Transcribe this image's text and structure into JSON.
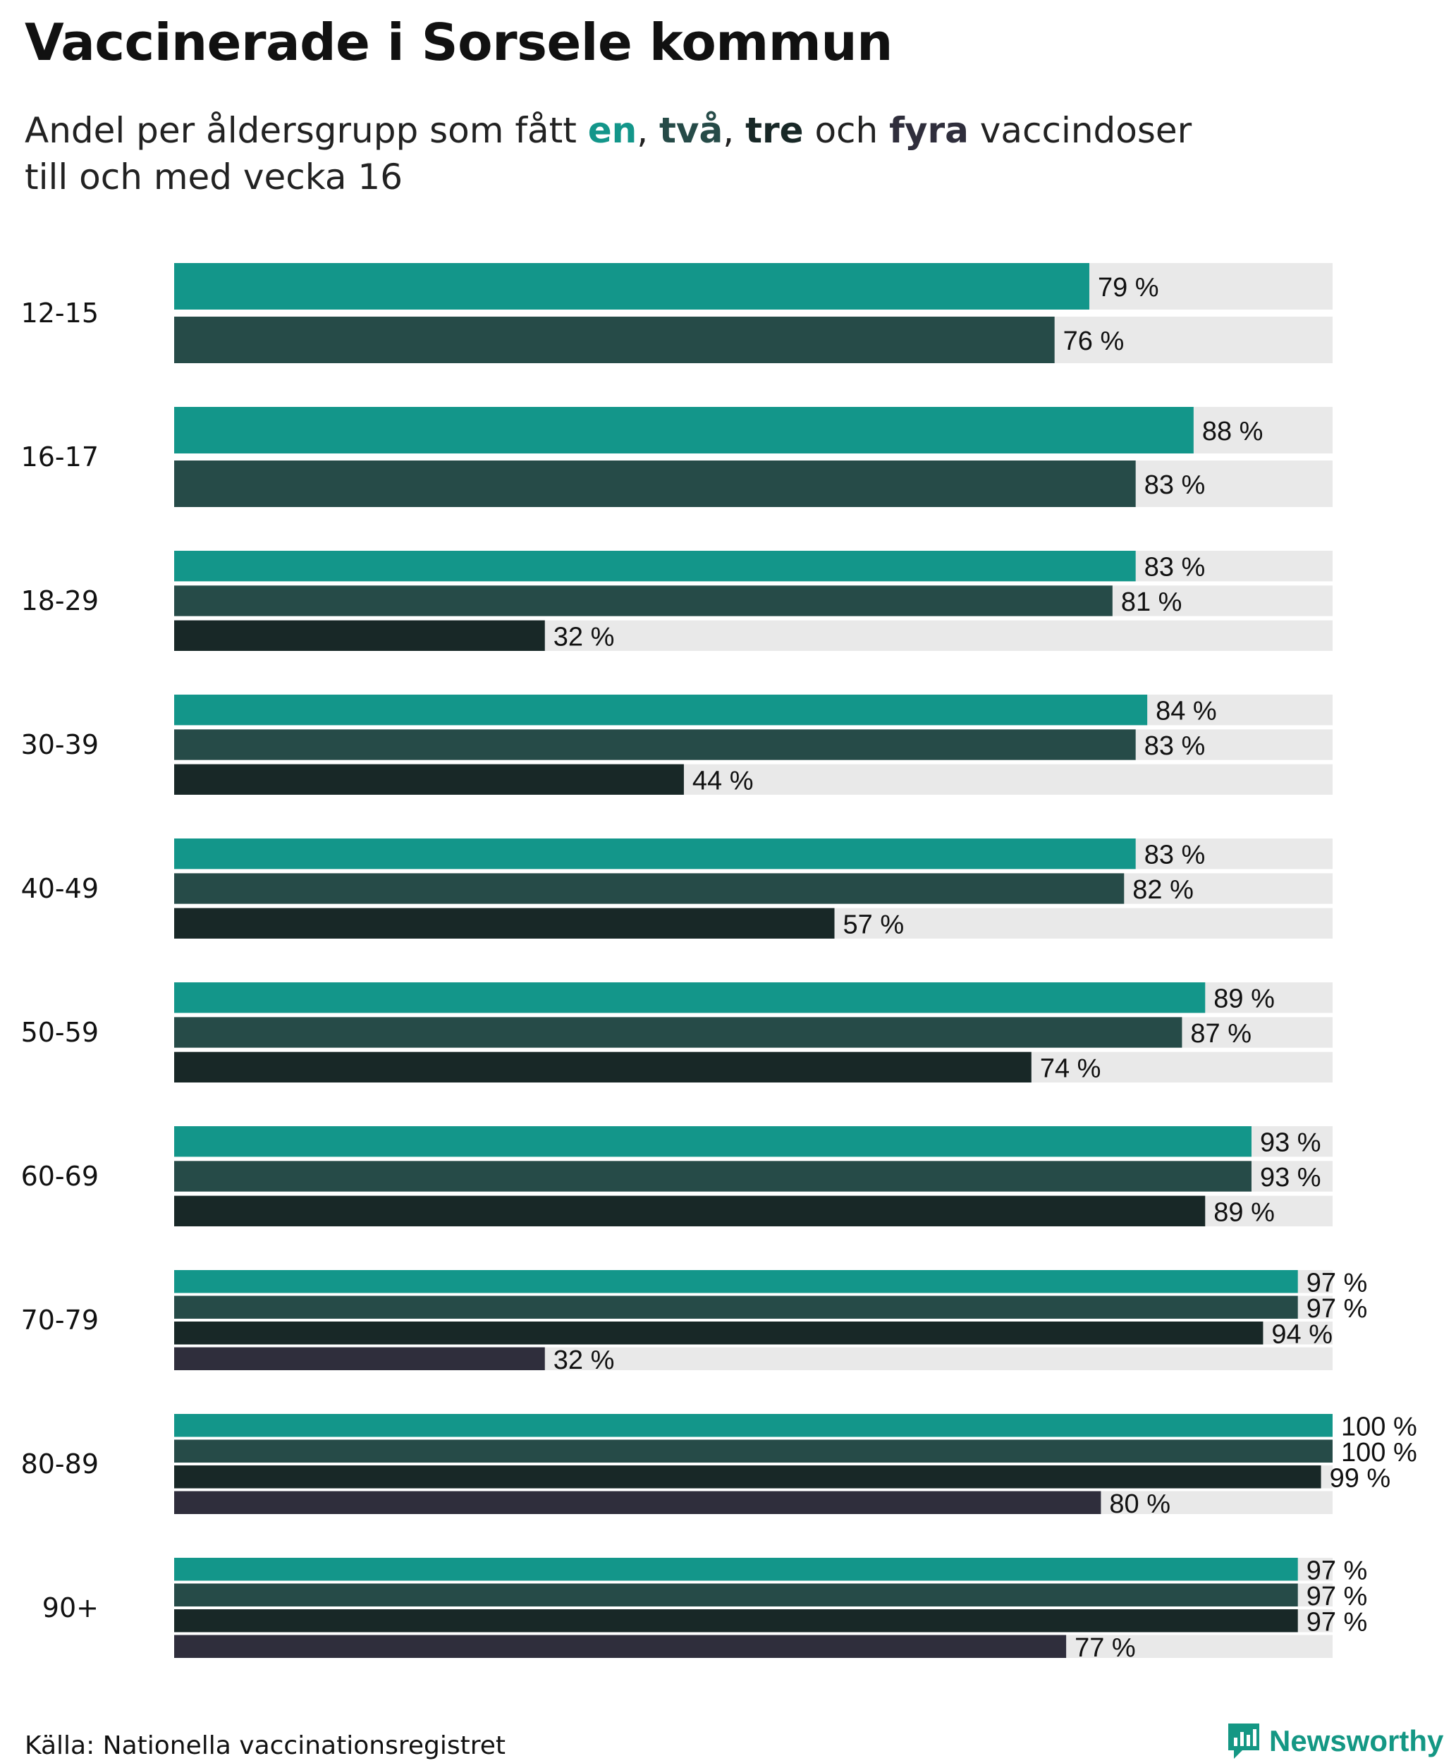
{
  "title": "Vaccinerade i Sorsele kommun",
  "subtitle": {
    "prefix": "Andel per åldersgrupp som fått ",
    "one": "en",
    "sep1": ", ",
    "two": "två",
    "sep2": ", ",
    "three": "tre",
    "och": " och ",
    "four": "fyra",
    "suffix_line1": " vaccindoser",
    "line2": "till och med vecka 16"
  },
  "colors": {
    "dose1": "#13968a",
    "dose2": "#264b48",
    "dose3": "#182827",
    "dose4": "#2f2e3c",
    "track": "#e9e9e9"
  },
  "source": "Källa: Nationella vaccinationsregistret",
  "logo": {
    "text": "Newsworthy",
    "icon": "newsworthy-logo-icon"
  },
  "chart_data": {
    "type": "bar",
    "orientation": "horizontal",
    "title": "Vaccinerade i Sorsele kommun",
    "xlim": [
      0,
      100
    ],
    "unit": "%",
    "categories": [
      "12-15",
      "16-17",
      "18-29",
      "30-39",
      "40-49",
      "50-59",
      "60-69",
      "70-79",
      "80-89",
      "90+"
    ],
    "series": [
      {
        "name": "en",
        "values": [
          79,
          88,
          83,
          84,
          83,
          89,
          93,
          97,
          100,
          97
        ]
      },
      {
        "name": "två",
        "values": [
          76,
          83,
          81,
          83,
          82,
          87,
          93,
          97,
          100,
          97
        ]
      },
      {
        "name": "tre",
        "values": [
          null,
          null,
          32,
          44,
          57,
          74,
          89,
          94,
          99,
          97
        ]
      },
      {
        "name": "fyra",
        "values": [
          null,
          null,
          null,
          null,
          null,
          null,
          null,
          32,
          80,
          77
        ]
      }
    ],
    "labels": [
      [
        "79 %",
        "76 %"
      ],
      [
        "88 %",
        "83 %"
      ],
      [
        "83 %",
        "81 %",
        "32 %"
      ],
      [
        "84 %",
        "83 %",
        "44 %"
      ],
      [
        "83 %",
        "82 %",
        "57 %"
      ],
      [
        "89 %",
        "87 %",
        "74 %"
      ],
      [
        "93 %",
        "93 %",
        "89 %"
      ],
      [
        "97 %",
        "97 %",
        "94 %",
        "32 %"
      ],
      [
        "100 %",
        "100 %",
        "99 %",
        "80 %"
      ],
      [
        "97 %",
        "97 %",
        "97 %",
        "77 %"
      ]
    ]
  }
}
